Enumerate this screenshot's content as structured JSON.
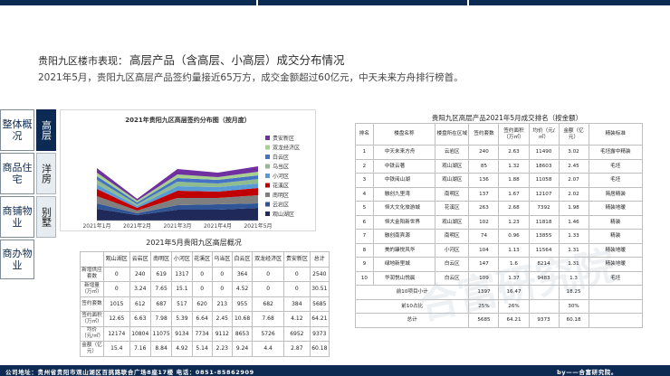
{
  "header": {
    "prefix": "贵阳九区楼市表现：",
    "title": "高层产品（含高层、小高层）成交分布情况",
    "subtitle": "2021年5月，贵阳九区高层产品签约量接近65万方，成交金额超过60亿元，中天未来方舟排行榜首。"
  },
  "nav": {
    "groups": [
      {
        "left": "整体概况",
        "right": "高层",
        "active": true
      },
      {
        "left": "商品住宅",
        "right": "洋房",
        "active": false
      },
      {
        "left": "商铺物业",
        "right": "别墅",
        "active": false
      },
      {
        "left": "商办物业",
        "right": "",
        "active": false
      }
    ]
  },
  "chart_data": {
    "type": "area",
    "title": "2021年贵阳九区高层签约分布图（按月度）",
    "x": [
      "2021年1月",
      "2021年2月",
      "2021年3月",
      "2021年4月",
      "2021年5月"
    ],
    "stacked": true,
    "ylim": [
      0,
      1.0
    ],
    "series": [
      {
        "name": "观山湖区",
        "color": "#1f2a5a",
        "values": [
          0.13,
          0.06,
          0.12,
          0.12,
          0.14
        ]
      },
      {
        "name": "云岩区",
        "color": "#2f5597",
        "values": [
          0.06,
          0.02,
          0.05,
          0.06,
          0.05
        ]
      },
      {
        "name": "南明区",
        "color": "#7f7f7f",
        "values": [
          0.08,
          0.03,
          0.08,
          0.07,
          0.09
        ]
      },
      {
        "name": "花溪区",
        "color": "#c00000",
        "values": [
          0.08,
          0.03,
          0.08,
          0.07,
          0.08
        ]
      },
      {
        "name": "小河区",
        "color": "#5b9bd5",
        "values": [
          0.05,
          0.02,
          0.05,
          0.05,
          0.05
        ]
      },
      {
        "name": "乌当区",
        "color": "#8fbc8f",
        "values": [
          0.05,
          0.02,
          0.05,
          0.04,
          0.05
        ]
      },
      {
        "name": "白云区",
        "color": "#4472c4",
        "values": [
          0.04,
          0.02,
          0.04,
          0.04,
          0.04
        ]
      },
      {
        "name": "双龙经济区",
        "color": "#a9d18e",
        "values": [
          0.04,
          0.02,
          0.04,
          0.03,
          0.04
        ]
      },
      {
        "name": "贵安新区",
        "color": "#7030a0",
        "values": [
          0.05,
          0.02,
          0.06,
          0.05,
          0.06
        ]
      }
    ],
    "legend": [
      "贵安新区",
      "双龙经济区",
      "白云区",
      "乌当区",
      "小河区",
      "花溪区",
      "南明区",
      "云岩区",
      "观山湖区"
    ],
    "legend_position": "right",
    "grid": false
  },
  "left_table": {
    "title": "2021年5月贵阳九区高层概况",
    "columns": [
      "",
      "观山湖区",
      "云岩区",
      "南明区",
      "小河区",
      "花溪区",
      "乌当区",
      "白云区",
      "双龙经济区",
      "贵安新区",
      "总计"
    ],
    "rows": [
      [
        "新增供应套数",
        "0",
        "240",
        "619",
        "1317",
        "0",
        "0",
        "364",
        "0",
        "0",
        "2540"
      ],
      [
        "新增量（万㎡）",
        "0",
        "3.24",
        "7.65",
        "15.1",
        "0",
        "0",
        "4.52",
        "0",
        "0",
        "30.51"
      ],
      [
        "签约套数",
        "1015",
        "612",
        "687",
        "517",
        "620",
        "213",
        "955",
        "682",
        "384",
        "5685"
      ],
      [
        "签约面积（万㎡）",
        "12.65",
        "6.63",
        "7.98",
        "5.39",
        "6.64",
        "2.45",
        "10.68",
        "7.68",
        "4.12",
        "64.21"
      ],
      [
        "均价（元/㎡）",
        "12174",
        "10804",
        "11075",
        "9134",
        "7734",
        "9112",
        "8653",
        "5726",
        "6952",
        "9373"
      ],
      [
        "金额（亿元）",
        "15.4",
        "7.16",
        "8.84",
        "4.92",
        "5.14",
        "2.23",
        "9.24",
        "4.4",
        "2.87",
        "60.18"
      ]
    ]
  },
  "right_table": {
    "title": "贵阳九区高层产品2021年5月成交排名（按金额）",
    "columns": [
      "排名",
      "楼盘名称",
      "楼盘所在区域",
      "签约套数",
      "签约面积（万㎡）",
      "均价（元/㎡）",
      "金额（亿元）",
      "精装标准"
    ],
    "rows": [
      [
        "1",
        "中天未来方舟",
        "云岩区",
        "240",
        "2.63",
        "11490",
        "3.02",
        "毛坯露中精装"
      ],
      [
        "2",
        "中铁云著",
        "观山湖区",
        "85",
        "1.32",
        "18603",
        "2.45",
        "毛坯"
      ],
      [
        "3",
        "中铁阅山湖",
        "观山湖区",
        "136",
        "1.88",
        "11058",
        "2.07",
        "毛坯"
      ],
      [
        "4",
        "融创九里湾",
        "南明区",
        "137",
        "1.67",
        "12107",
        "2.02",
        "简居精装"
      ],
      [
        "5",
        "恒大文化旅游城",
        "花溪区",
        "263",
        "2.68",
        "7392",
        "1.98",
        "精装地暖"
      ],
      [
        "6",
        "恒大金阳新世界",
        "观山湖区",
        "102",
        "1.23",
        "11818",
        "1.46",
        "精装"
      ],
      [
        "7",
        "融创南宾源",
        "南明区",
        "74",
        "0.96",
        "13855",
        "1.33",
        "精装"
      ],
      [
        "8",
        "美的臻悦风华",
        "小河区",
        "104",
        "1.13",
        "11564",
        "1.31",
        "精装地暖"
      ],
      [
        "9",
        "绿地新里城",
        "白云区",
        "147",
        "1.6",
        "8214",
        "1.31",
        "精装地暖"
      ],
      [
        "10",
        "华润悦山悦晨",
        "白云区",
        "109",
        "1.37",
        "9483",
        "1.3",
        "毛坯"
      ]
    ],
    "summary": [
      {
        "label": "前10项目小计",
        "sets": "1397",
        "area": "16.47",
        "price": "",
        "amount": "18.25"
      },
      {
        "label": "前10占比",
        "sets": "25%",
        "area": "26%",
        "price": "",
        "amount": "30%"
      },
      {
        "label": "总计",
        "sets": "5685",
        "area": "64.21",
        "price": "9373",
        "amount": "60.18"
      }
    ]
  },
  "footer": {
    "address": "公司地址：贵州省贵阳市观山湖区百挑路联合广场8座17楼   电话：0851-85862909",
    "by": "by——合富研究院。"
  },
  "colors": {
    "navy": "#0d2a52",
    "nav_inactive": "#e7ecf1"
  }
}
